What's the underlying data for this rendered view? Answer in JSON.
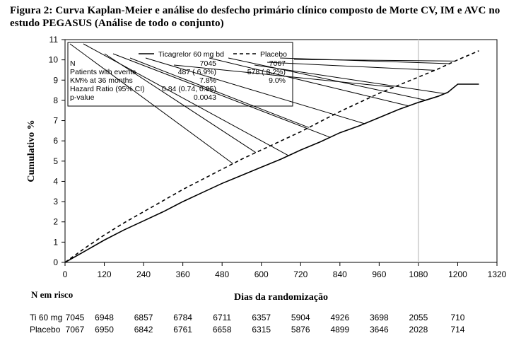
{
  "figure_title": "Figura 2: Curva Kaplan-Meier e análise do desfecho primário clínico composto de Morte CV, IM e AVC no estudo PEGASUS (Análise de todo o conjunto)",
  "colors": {
    "curve": "#000000",
    "box": "#000000",
    "axis": "#000000",
    "ref_line": "#d6d6d6"
  },
  "chart_data": {
    "type": "line",
    "title": "",
    "xlabel": "Dias da randomização",
    "ylabel": "Cumulativo %",
    "xlim": [
      0,
      1320
    ],
    "ylim": [
      0,
      11
    ],
    "x_ticks": [
      0,
      120,
      240,
      360,
      480,
      600,
      720,
      840,
      960,
      1080,
      1200,
      1320
    ],
    "y_ticks": [
      0,
      1,
      2,
      3,
      4,
      5,
      6,
      7,
      8,
      9,
      10,
      11
    ],
    "grid": false,
    "reference_line_x": 1080,
    "legend_position": "top-left box",
    "series": [
      {
        "name": "Ticagrelor 60 mg bd",
        "style": "solid",
        "x": [
          0,
          60,
          120,
          180,
          240,
          300,
          360,
          420,
          480,
          540,
          600,
          660,
          720,
          780,
          840,
          900,
          960,
          1020,
          1080,
          1140,
          1170,
          1200,
          1265
        ],
        "y": [
          0,
          0.55,
          1.1,
          1.6,
          2.05,
          2.5,
          3.0,
          3.45,
          3.9,
          4.3,
          4.7,
          5.1,
          5.55,
          5.95,
          6.4,
          6.75,
          7.15,
          7.55,
          7.9,
          8.2,
          8.4,
          8.8,
          8.8
        ]
      },
      {
        "name": "Placebo",
        "style": "dashed",
        "x": [
          0,
          60,
          120,
          180,
          240,
          300,
          360,
          420,
          480,
          540,
          600,
          660,
          720,
          780,
          840,
          900,
          960,
          1020,
          1080,
          1140,
          1200,
          1265
        ],
        "y": [
          0,
          0.7,
          1.35,
          1.95,
          2.5,
          3.05,
          3.6,
          4.1,
          4.6,
          5.1,
          5.55,
          6.0,
          6.45,
          6.95,
          7.45,
          7.9,
          8.35,
          8.75,
          9.15,
          9.55,
          10.0,
          10.45
        ]
      }
    ],
    "legend": {
      "col1": "Ticagrelor 60 mg bd",
      "col2": "Placebo",
      "rows": [
        {
          "label": "N",
          "v1": "7045",
          "v2": "7067"
        },
        {
          "label": "Patients with events",
          "v1": "487 ( 6.9%)",
          "v2": "578 ( 8.2%)"
        },
        {
          "label": "KM% at 36 months",
          "v1": "7.8%",
          "v2": "9.0%"
        },
        {
          "label": "Hazard Ratio (95% CI)",
          "v1": "0.84 (0.74, 0.95)",
          "v2": ""
        },
        {
          "label": "p-value",
          "v1": "0.0043",
          "v2": ""
        }
      ]
    },
    "numbers_at_risk": {
      "heading": "N em risco",
      "x": [
        0,
        120,
        240,
        360,
        480,
        600,
        720,
        840,
        960,
        1080,
        1200
      ],
      "rows": [
        {
          "label": "Ti 60 mg",
          "values": [
            "7045",
            "6948",
            "6857",
            "6784",
            "6711",
            "6357",
            "5904",
            "4926",
            "3698",
            "2055",
            "710"
          ]
        },
        {
          "label": "Placebo",
          "values": [
            "7067",
            "6950",
            "6842",
            "6761",
            "6658",
            "6315",
            "5876",
            "4899",
            "3646",
            "2028",
            "714"
          ]
        }
      ]
    }
  }
}
